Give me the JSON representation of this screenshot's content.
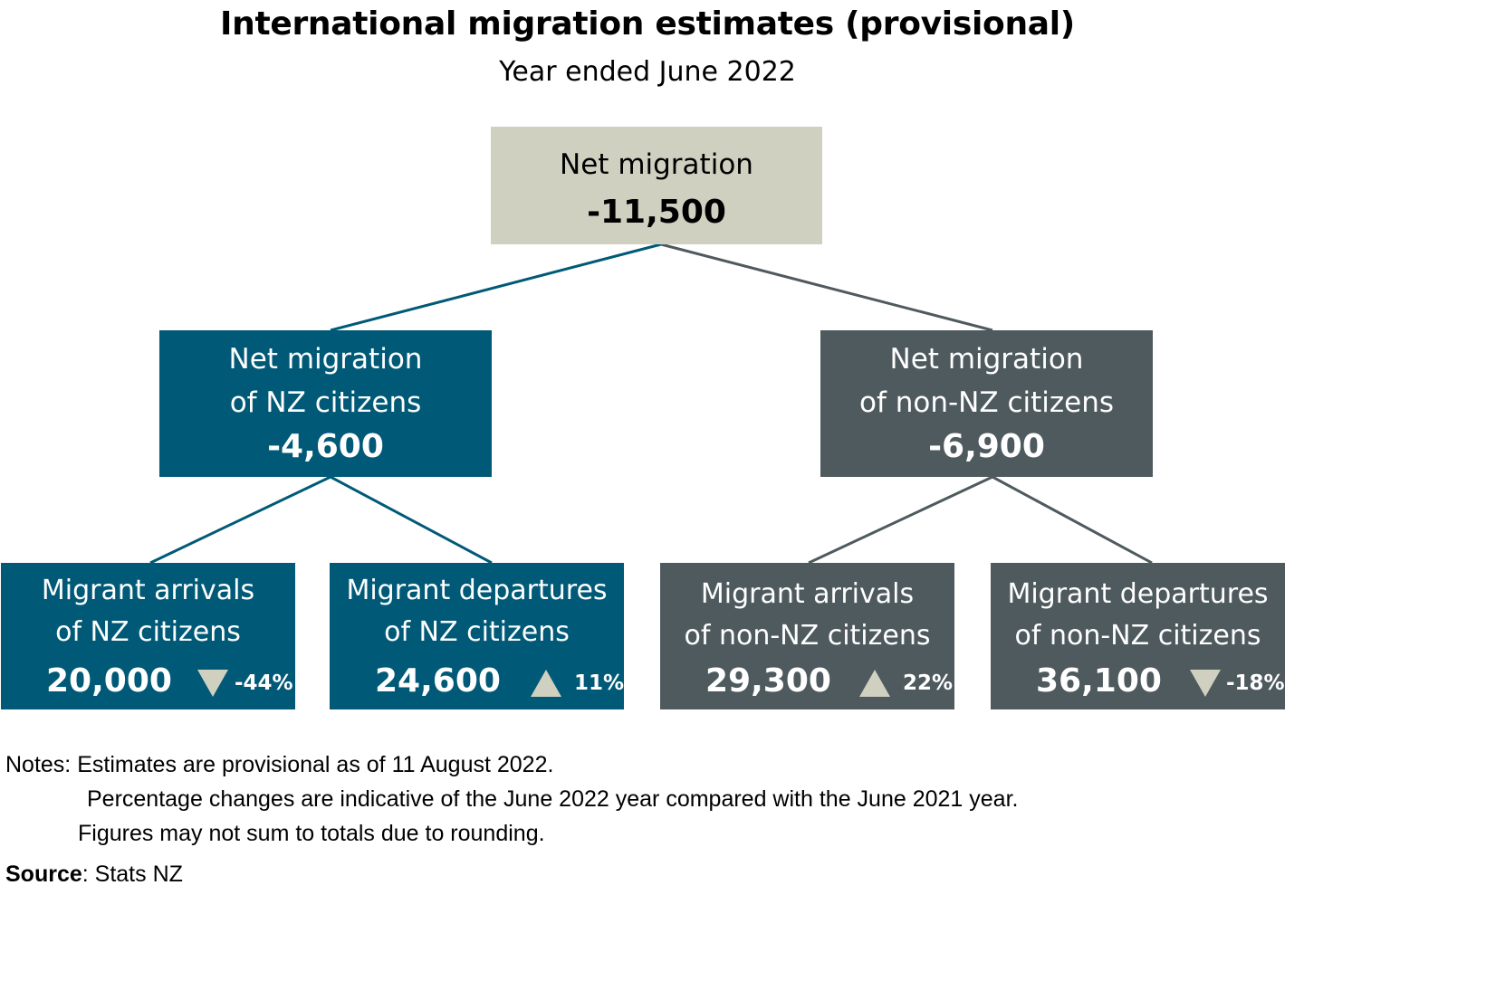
{
  "title": "International migration estimates (provisional)",
  "subtitle": "Year ended June 2022",
  "colors": {
    "root_fill": "#d0d0c0",
    "nz_fill": "#005a77",
    "non_nz_fill": "#4f5a5f",
    "arrow_fill": "#d0d0c0"
  },
  "root": {
    "label": "Net migration",
    "value": "-11,500"
  },
  "nz": {
    "label_line1": "Net migration",
    "label_line2": "of NZ citizens",
    "value": "-4,600",
    "arrivals": {
      "label_line1": "Migrant arrivals",
      "label_line2": "of NZ citizens",
      "value": "20,000",
      "change": "-44%",
      "direction": "down"
    },
    "departures": {
      "label_line1": "Migrant departures",
      "label_line2": "of NZ citizens",
      "value": "24,600",
      "change": "11%",
      "direction": "up"
    }
  },
  "non_nz": {
    "label_line1": "Net migration",
    "label_line2": "of non-NZ citizens",
    "value": "-6,900",
    "arrivals": {
      "label_line1": "Migrant arrivals",
      "label_line2": "of non-NZ citizens",
      "value": "29,300",
      "change": "22%",
      "direction": "up"
    },
    "departures": {
      "label_line1": "Migrant departures",
      "label_line2": "of non-NZ citizens",
      "value": "36,100",
      "change": "-18%",
      "direction": "down"
    }
  },
  "notes": {
    "line1": "Notes: Estimates are provisional as of 11 August 2022.",
    "line2": "Percentage changes are indicative of the June 2022 year compared with the June 2021 year.",
    "line3": "Figures may not sum to totals due to rounding."
  },
  "source": {
    "label": "Source",
    "text": ": Stats NZ"
  }
}
